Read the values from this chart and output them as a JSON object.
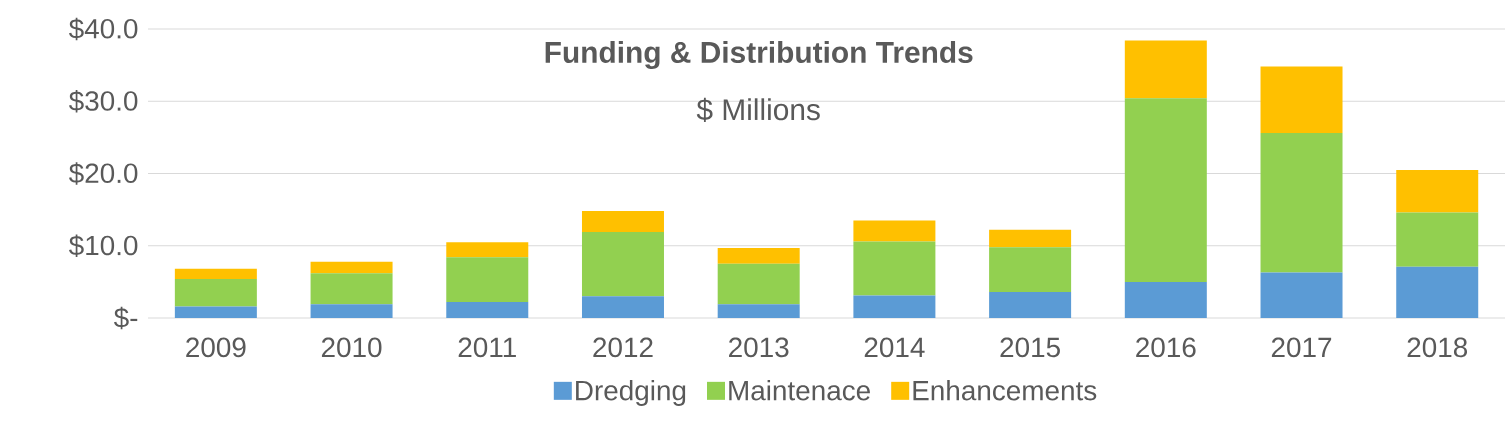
{
  "chart_data": {
    "type": "bar",
    "title": "Funding & Distribution Trends",
    "subtitle": "$ Millions",
    "categories": [
      "2009",
      "2010",
      "2011",
      "2012",
      "2013",
      "2014",
      "2015",
      "2016",
      "2017",
      "2018"
    ],
    "stacked": true,
    "series": [
      {
        "name": "Dredging",
        "color": "#5b9bd5",
        "values": [
          1.6,
          1.9,
          2.2,
          3.0,
          1.9,
          3.1,
          3.6,
          5.0,
          6.3,
          7.1
        ]
      },
      {
        "name": "Maintenace",
        "color": "#92d050",
        "values": [
          3.8,
          4.3,
          6.2,
          8.9,
          5.6,
          7.5,
          6.2,
          25.4,
          19.3,
          7.5
        ]
      },
      {
        "name": "Enhancements",
        "color": "#ffc000",
        "values": [
          1.4,
          1.6,
          2.1,
          2.9,
          2.2,
          2.9,
          2.4,
          8.0,
          9.2,
          5.9
        ]
      }
    ],
    "ylim": [
      0,
      40
    ],
    "yticks": [
      {
        "value": 0,
        "label": "$-"
      },
      {
        "value": 10,
        "label": "$10.0"
      },
      {
        "value": 20,
        "label": "$20.0"
      },
      {
        "value": 30,
        "label": "$30.0"
      },
      {
        "value": 40,
        "label": "$40.0"
      }
    ],
    "grid": "y",
    "legend": "bottom"
  }
}
